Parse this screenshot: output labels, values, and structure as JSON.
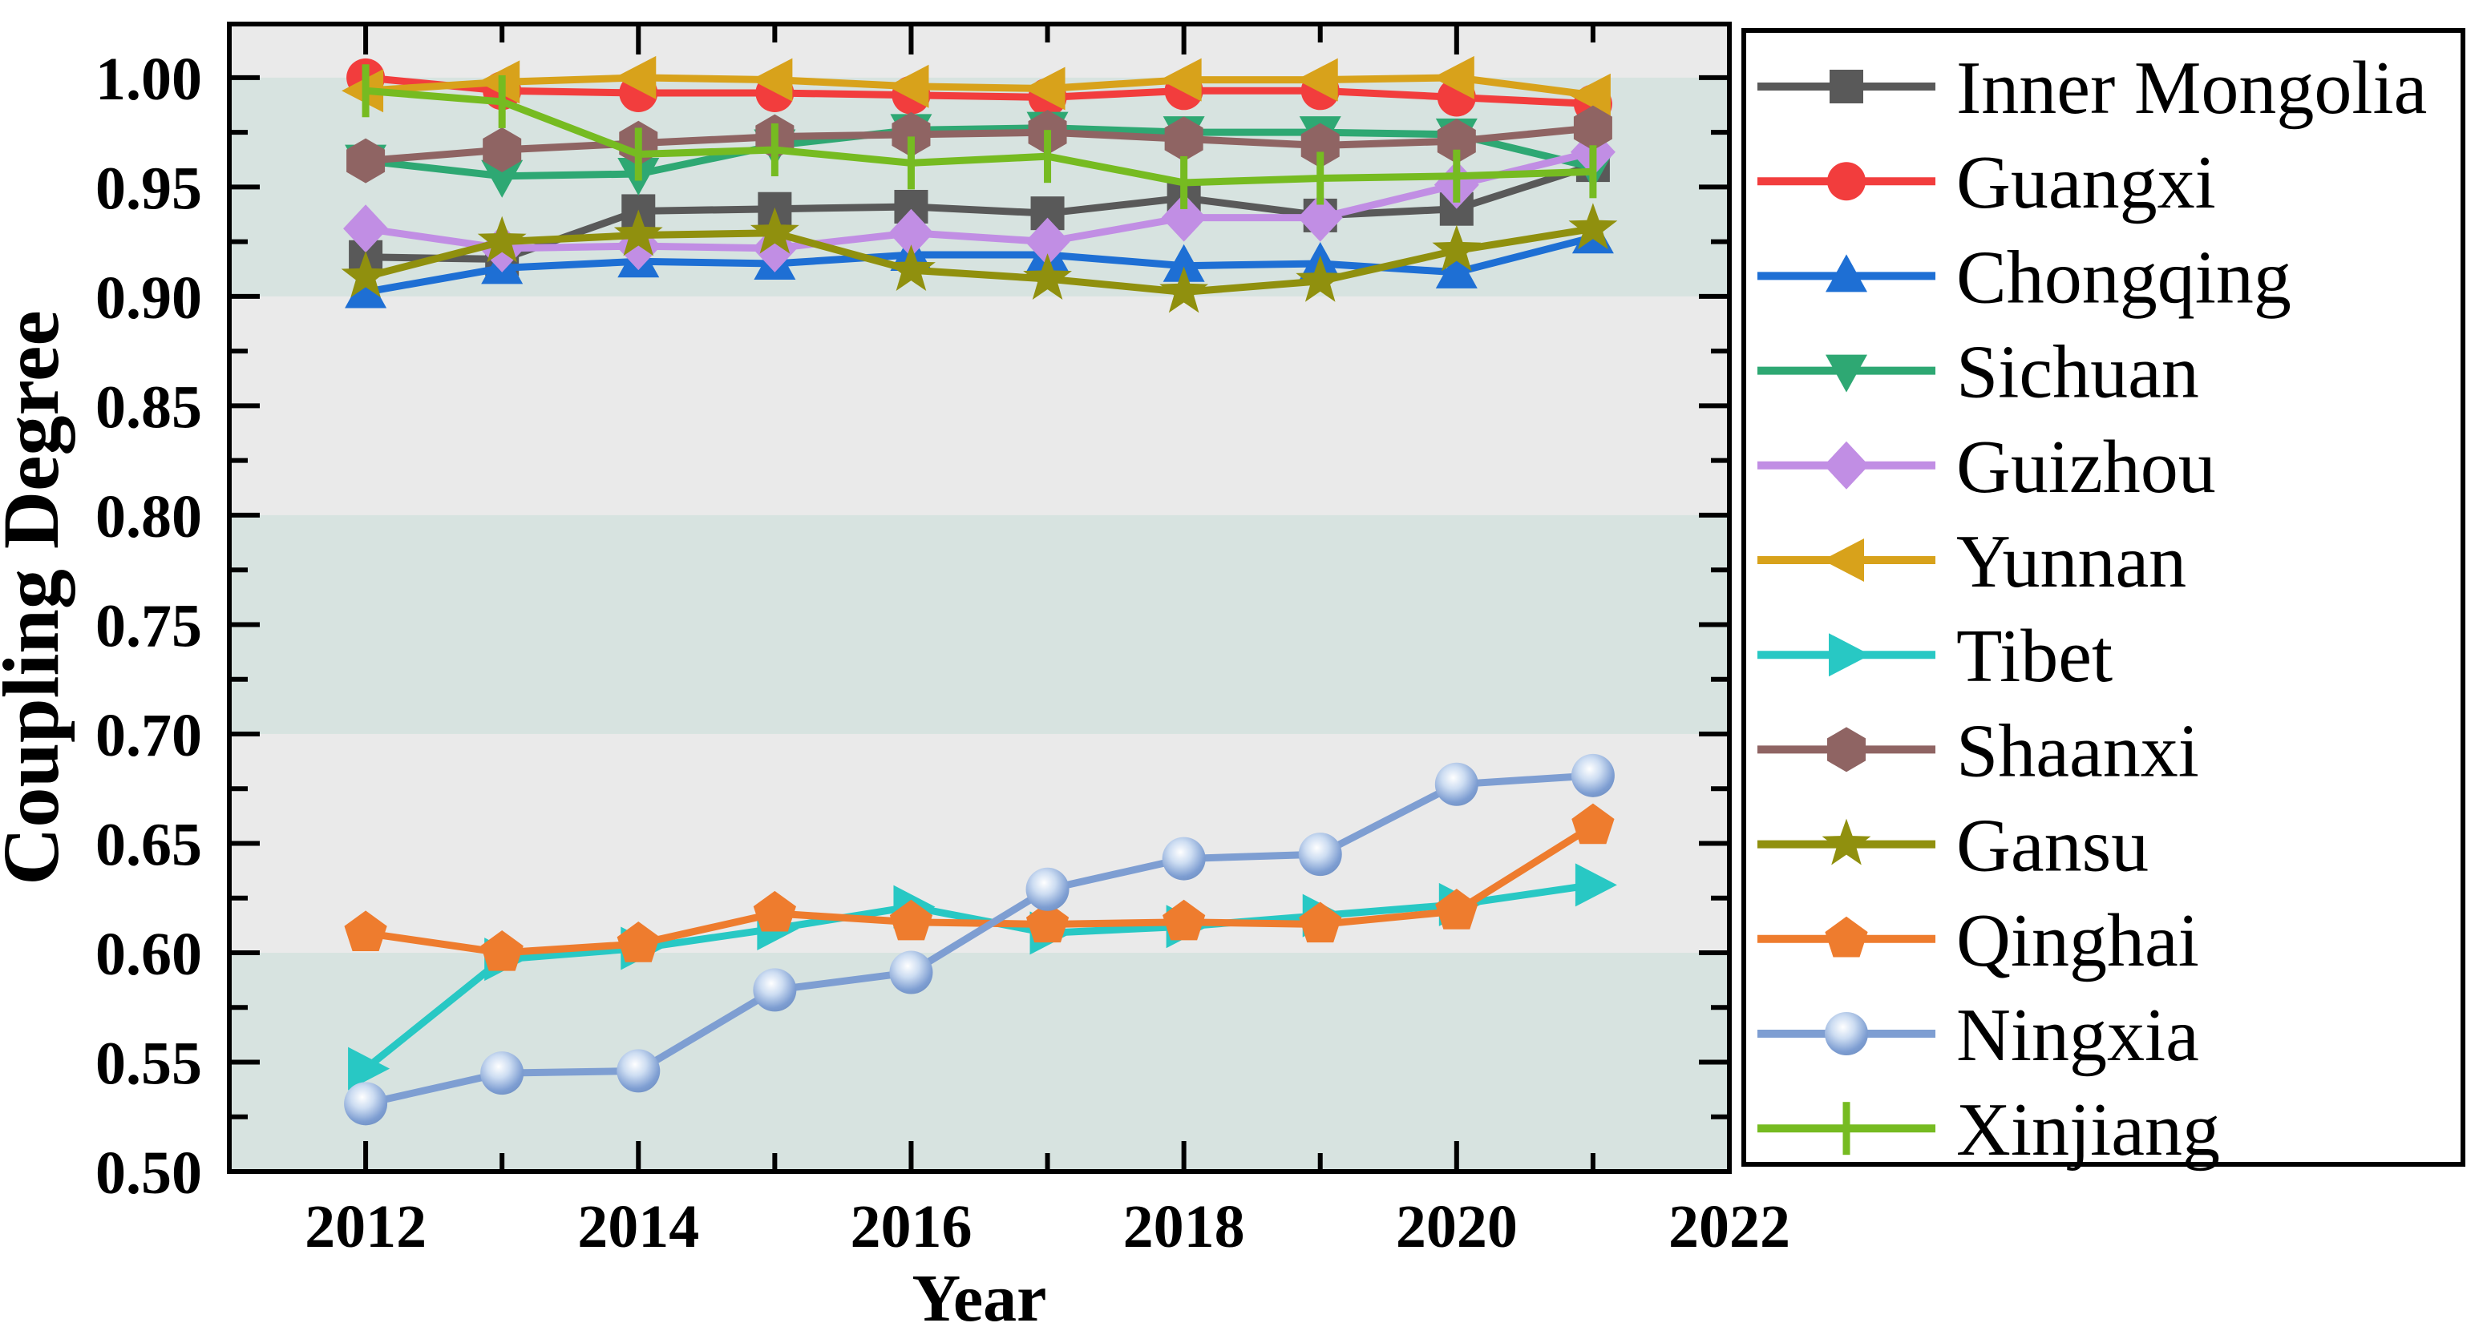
{
  "figure": {
    "background": "#ffffff",
    "plot_bg_gray": "#eaeaea",
    "plot_bg_teal": "#d7e3e0",
    "frame_color": "#000000"
  },
  "chart_data": {
    "type": "line",
    "title": "",
    "xlabel": "Year",
    "ylabel": "Coupling Degree",
    "x": [
      2012,
      2013,
      2014,
      2015,
      2016,
      2017,
      2018,
      2019,
      2020,
      2021
    ],
    "xlim": [
      2011,
      2022
    ],
    "ylim": [
      0.5,
      1.0245
    ],
    "grid": false,
    "legend_position": "right",
    "x_major_ticks": [
      2012,
      2014,
      2016,
      2018,
      2020,
      2022
    ],
    "x_tick_labels": [
      "2012",
      "2014",
      "2016",
      "2018",
      "2020",
      "2022"
    ],
    "x_minor_ticks": [
      2013,
      2015,
      2017,
      2019,
      2021
    ],
    "y_major_ticks": [
      1.0,
      0.95,
      0.9,
      0.85,
      0.8,
      0.75,
      0.7,
      0.65,
      0.6,
      0.55,
      0.5
    ],
    "y_tick_labels": [
      "1.00",
      "0.95",
      "0.90",
      "0.85",
      "0.80",
      "0.75",
      "0.70",
      "0.65",
      "0.60",
      "0.55",
      "0.50"
    ],
    "y_minor_ticks": [
      0.975,
      0.925,
      0.875,
      0.825,
      0.775,
      0.725,
      0.675,
      0.625,
      0.575,
      0.525
    ],
    "background_bands_teal": [
      [
        1.0,
        0.9
      ],
      [
        0.8,
        0.7
      ],
      [
        0.6,
        0.5
      ]
    ],
    "series": [
      {
        "name": "Inner Mongolia",
        "color": "#595959",
        "marker": "square",
        "values": [
          0.918,
          0.917,
          0.939,
          0.94,
          0.941,
          0.938,
          0.945,
          0.937,
          0.94,
          0.96
        ]
      },
      {
        "name": "Guangxi",
        "color": "#f23d3d",
        "marker": "circle",
        "values": [
          1.0,
          0.994,
          0.993,
          0.993,
          0.992,
          0.991,
          0.994,
          0.994,
          0.991,
          0.988
        ]
      },
      {
        "name": "Chongqing",
        "color": "#1e6fd4",
        "marker": "triangle-up",
        "values": [
          0.902,
          0.913,
          0.916,
          0.915,
          0.919,
          0.919,
          0.914,
          0.915,
          0.911,
          0.927
        ]
      },
      {
        "name": "Sichuan",
        "color": "#2ea873",
        "marker": "triangle-down",
        "values": [
          0.962,
          0.955,
          0.956,
          0.969,
          0.976,
          0.977,
          0.975,
          0.975,
          0.974,
          0.959
        ]
      },
      {
        "name": "Guizhou",
        "color": "#c18ee4",
        "marker": "diamond",
        "values": [
          0.931,
          0.922,
          0.923,
          0.922,
          0.929,
          0.925,
          0.936,
          0.936,
          0.951,
          0.966
        ]
      },
      {
        "name": "Yunnan",
        "color": "#d8a21b",
        "marker": "triangle-left",
        "values": [
          0.994,
          0.998,
          1.0,
          0.999,
          0.996,
          0.995,
          0.999,
          0.999,
          1.0,
          0.992
        ]
      },
      {
        "name": "Tibet",
        "color": "#28c8c4",
        "marker": "triangle-right",
        "values": [
          0.547,
          0.597,
          0.602,
          0.611,
          0.621,
          0.609,
          0.612,
          0.617,
          0.622,
          0.631
        ]
      },
      {
        "name": "Shaanxi",
        "color": "#8f6463",
        "marker": "hexagon",
        "values": [
          0.962,
          0.967,
          0.97,
          0.973,
          0.974,
          0.975,
          0.972,
          0.969,
          0.971,
          0.977
        ]
      },
      {
        "name": "Gansu",
        "color": "#90900e",
        "marker": "star",
        "values": [
          0.909,
          0.925,
          0.928,
          0.929,
          0.912,
          0.908,
          0.902,
          0.907,
          0.921,
          0.931
        ]
      },
      {
        "name": "Qinghai",
        "color": "#ee7c2e",
        "marker": "pentagon",
        "values": [
          0.609,
          0.6,
          0.604,
          0.618,
          0.614,
          0.613,
          0.614,
          0.613,
          0.619,
          0.658
        ]
      },
      {
        "name": "Ningxia",
        "color": "#7e9ed2",
        "marker": "sphere",
        "values": [
          0.531,
          0.545,
          0.546,
          0.583,
          0.591,
          0.629,
          0.643,
          0.645,
          0.677,
          0.681
        ]
      },
      {
        "name": "Xinjiang",
        "color": "#76bb21",
        "marker": "vline",
        "values": [
          0.994,
          0.989,
          0.965,
          0.967,
          0.961,
          0.964,
          0.952,
          0.954,
          0.955,
          0.957
        ]
      }
    ]
  }
}
